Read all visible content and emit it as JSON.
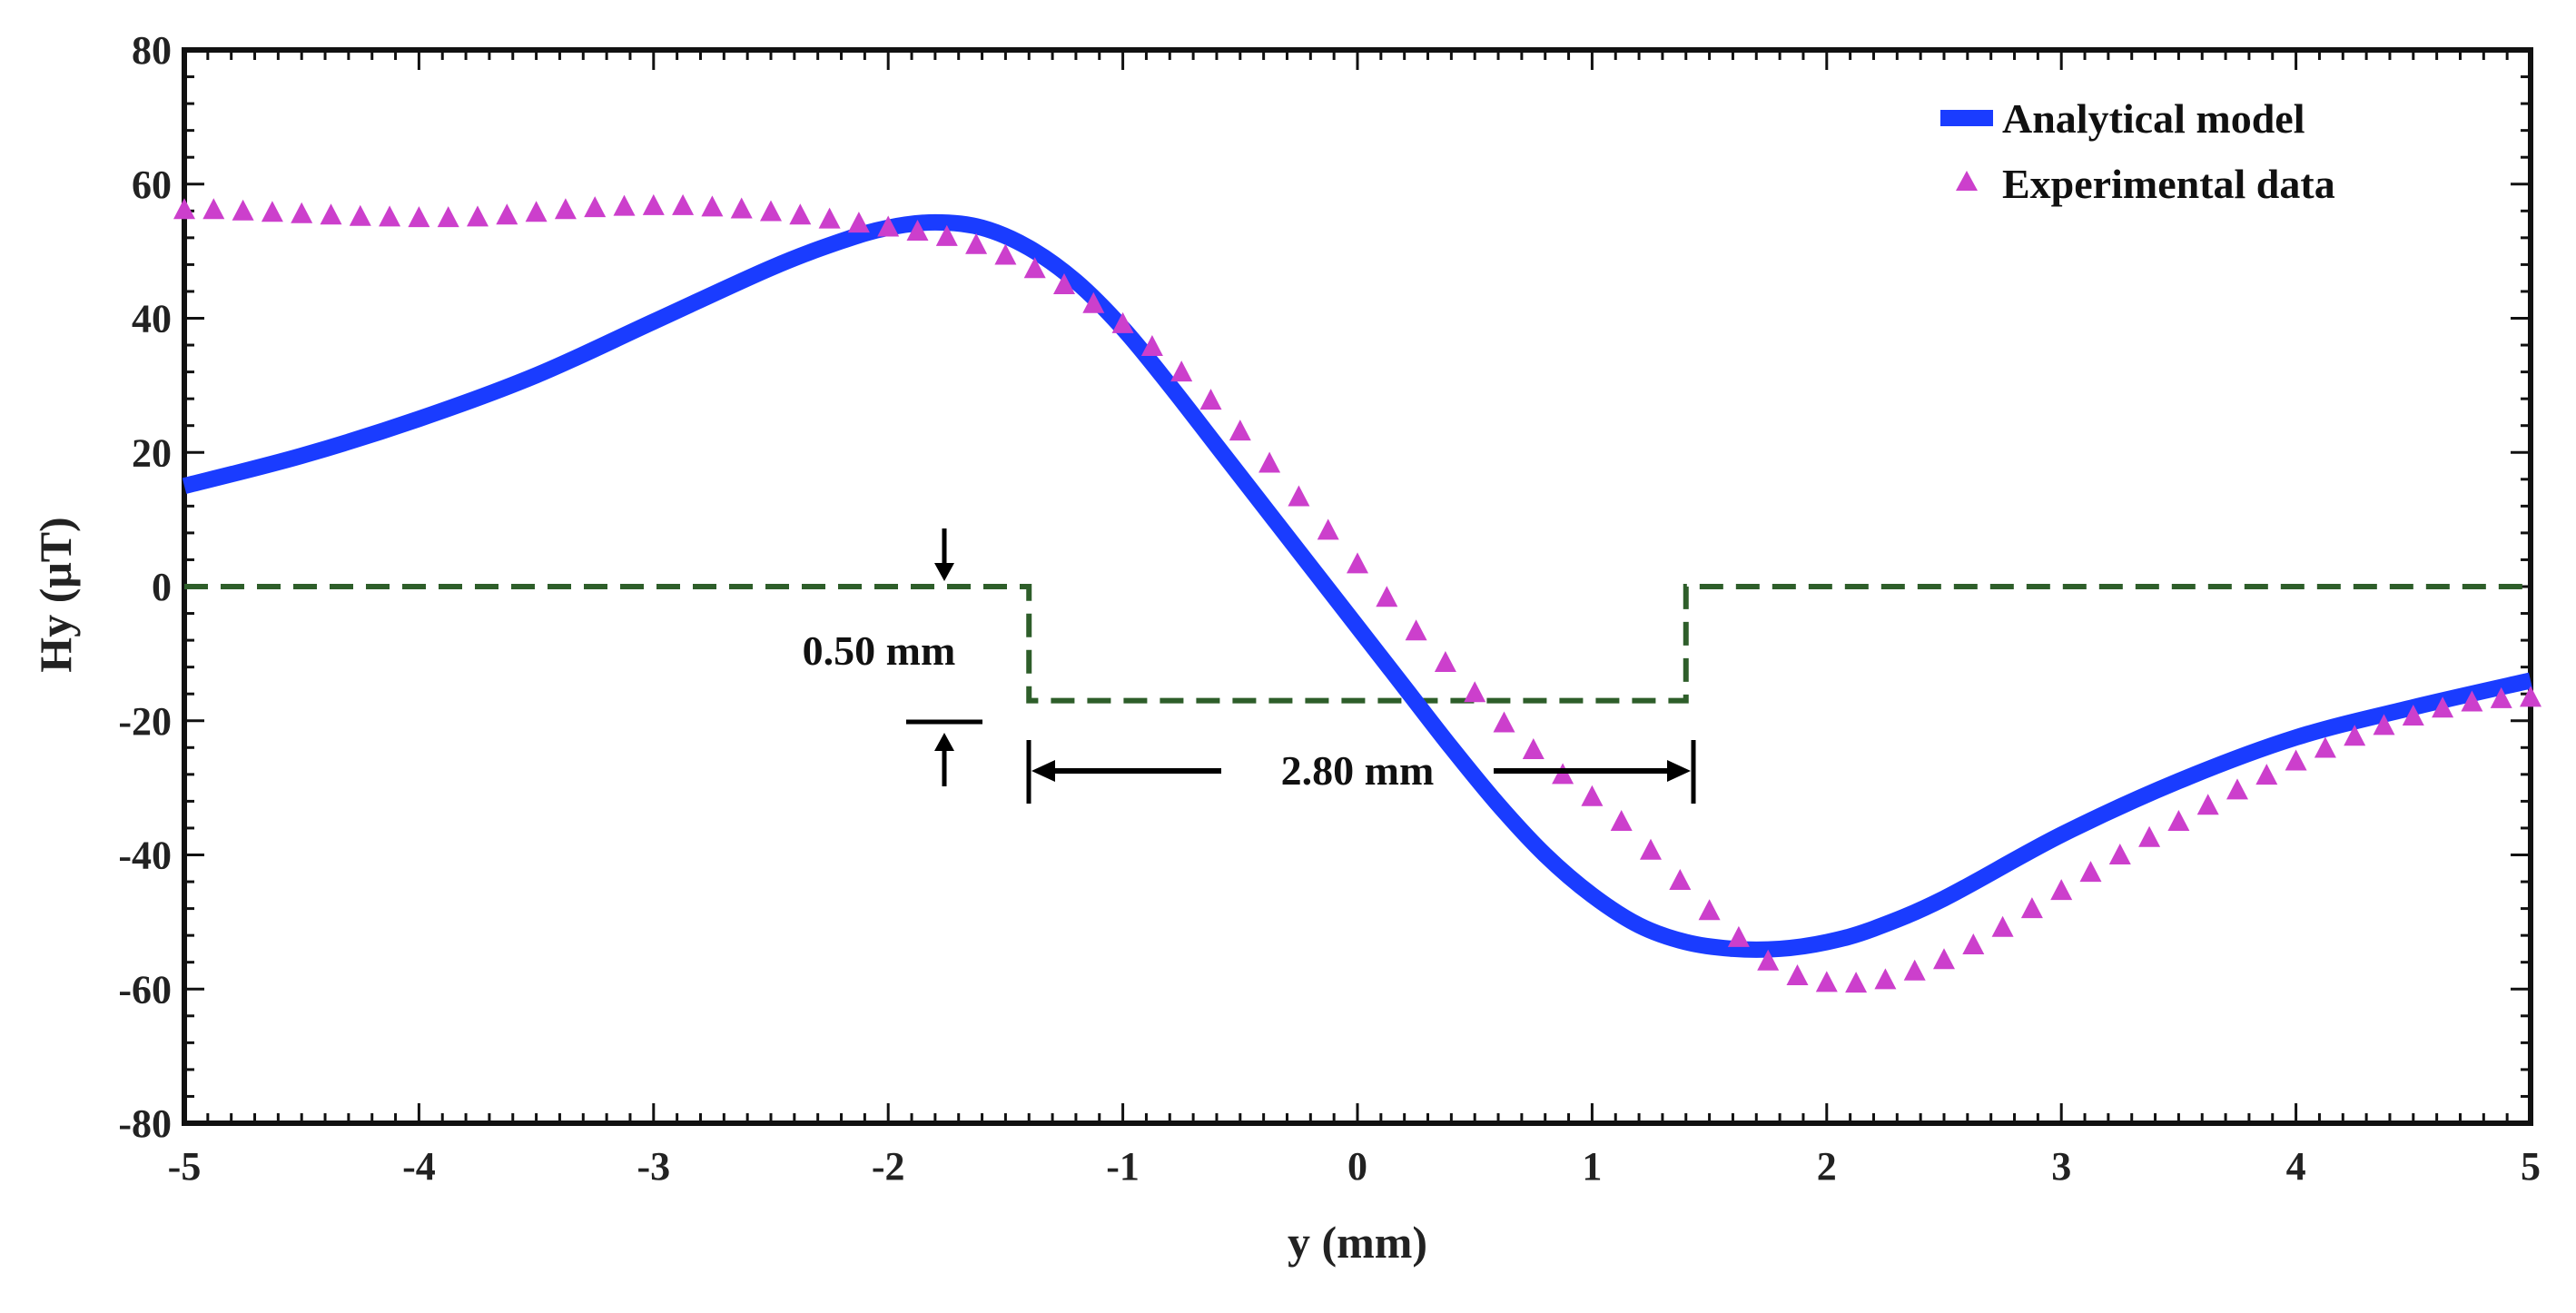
{
  "chart_data": {
    "type": "line",
    "title": "",
    "xlabel": "y (mm)",
    "ylabel": "Hy (μT)",
    "xlim": [
      -5,
      5
    ],
    "ylim": [
      -80,
      80
    ],
    "xticks": [
      -5,
      -4,
      -3,
      -2,
      -1,
      0,
      1,
      2,
      3,
      4,
      5
    ],
    "yticks": [
      80,
      60,
      40,
      20,
      0,
      -20,
      -40,
      -60,
      -80
    ],
    "legend_position": "top-right",
    "series": [
      {
        "name": "Analytical model",
        "style": "line",
        "color": "#1a3cff",
        "x": [
          -5.0,
          -4.5,
          -4.0,
          -3.5,
          -3.0,
          -2.5,
          -2.2,
          -2.0,
          -1.8,
          -1.6,
          -1.4,
          -1.2,
          -1.0,
          -0.8,
          -0.6,
          -0.4,
          -0.2,
          0.0,
          0.2,
          0.4,
          0.6,
          0.8,
          1.0,
          1.2,
          1.4,
          1.6,
          1.8,
          2.0,
          2.2,
          2.5,
          3.0,
          3.5,
          4.0,
          4.5,
          5.0
        ],
        "y": [
          15,
          19.5,
          25,
          31.5,
          39.5,
          47.5,
          51.5,
          53.5,
          54.3,
          53.5,
          50.5,
          45.5,
          38.5,
          30,
          21,
          12,
          3,
          -6,
          -15,
          -24,
          -32.5,
          -40,
          -46,
          -50.5,
          -53,
          -54,
          -54,
          -53,
          -51,
          -46.5,
          -37,
          -29,
          -22.5,
          -18,
          -14
        ]
      },
      {
        "name": "Experimental data",
        "style": "scatter",
        "marker": "triangle",
        "color": "#cc3fcc",
        "x": [
          -5.0,
          -4.875,
          -4.75,
          -4.625,
          -4.5,
          -4.375,
          -4.25,
          -4.125,
          -4.0,
          -3.875,
          -3.75,
          -3.625,
          -3.5,
          -3.375,
          -3.25,
          -3.125,
          -3.0,
          -2.875,
          -2.75,
          -2.625,
          -2.5,
          -2.375,
          -2.25,
          -2.125,
          -2.0,
          -1.875,
          -1.75,
          -1.625,
          -1.5,
          -1.375,
          -1.25,
          -1.125,
          -1.0,
          -0.875,
          -0.75,
          -0.625,
          -0.5,
          -0.375,
          -0.25,
          -0.125,
          0.0,
          0.125,
          0.25,
          0.375,
          0.5,
          0.625,
          0.75,
          0.875,
          1.0,
          1.125,
          1.25,
          1.375,
          1.5,
          1.625,
          1.75,
          1.875,
          2.0,
          2.125,
          2.25,
          2.375,
          2.5,
          2.625,
          2.75,
          2.875,
          3.0,
          3.125,
          3.25,
          3.375,
          3.5,
          3.625,
          3.75,
          3.875,
          4.0,
          4.125,
          4.25,
          4.375,
          4.5,
          4.625,
          4.75,
          4.875,
          5.0
        ],
        "y": [
          56,
          56,
          55.8,
          55.6,
          55.4,
          55.2,
          55,
          54.9,
          54.8,
          54.8,
          54.9,
          55.2,
          55.6,
          56,
          56.3,
          56.5,
          56.6,
          56.6,
          56.4,
          56.1,
          55.7,
          55.2,
          54.6,
          54,
          53.4,
          52.8,
          52,
          50.8,
          49.2,
          47.2,
          44.8,
          42,
          39,
          35.6,
          31.8,
          27.6,
          23,
          18.2,
          13.2,
          8.2,
          3.2,
          -1.8,
          -6.8,
          -11.5,
          -16,
          -20.5,
          -24.5,
          -28.2,
          -31.5,
          -35.2,
          -39.5,
          -44,
          -48.5,
          -52.5,
          -56,
          -58.2,
          -59.2,
          -59.3,
          -58.8,
          -57.5,
          -55.8,
          -53.6,
          -51,
          -48.2,
          -45.5,
          -42.8,
          -40.2,
          -37.6,
          -35.2,
          -32.8,
          -30.5,
          -28.3,
          -26.2,
          -24.3,
          -22.5,
          -20.9,
          -19.5,
          -18.3,
          -17.4,
          -16.9,
          -16.7
        ]
      }
    ],
    "notch_profile": {
      "x": [
        -5,
        -1.4,
        -1.4,
        1.4,
        1.4,
        5
      ],
      "y": [
        0,
        0,
        -17,
        -17,
        0,
        0
      ],
      "color": "#2e5e2a"
    },
    "annotations": {
      "depth_label": "0.50 mm",
      "width_label": "2.80 mm"
    }
  }
}
